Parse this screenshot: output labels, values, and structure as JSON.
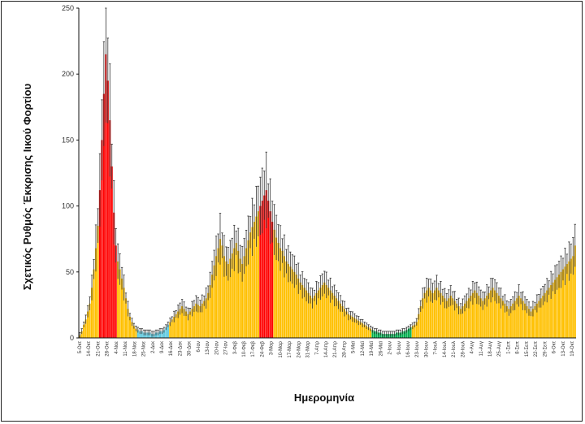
{
  "chart_data": {
    "type": "bar",
    "title": "",
    "xlabel": "Ημερομηνία",
    "ylabel": "Σχετικός Ρυθμός Έκκρισης Ιικού Φορτίου",
    "ylim": [
      0,
      250
    ],
    "y_ticks": [
      0,
      50,
      100,
      150,
      200,
      250
    ],
    "grid": false,
    "legend": "none",
    "colors": {
      "yellow": "#FFC000",
      "red": "#FF0000",
      "green": "#00B050",
      "blue": "#5BC8DE",
      "error_bar": "#333333",
      "axis": "#111111"
    },
    "x_tick_labels": [
      "5-Οκτ",
      "14-Οκτ",
      "21-Οκτ",
      "28-Οκτ",
      "4-Νοε",
      "11-Νοε",
      "18-Νοε",
      "25-Νοε",
      "2-Δεκ",
      "9-Δεκ",
      "16-Δεκ",
      "23-Δεκ",
      "30-Δεκ",
      "6-Ιαν",
      "13-Ιαν",
      "20-Ιαν",
      "27-Ιαν",
      "3-Φεβ",
      "10-Φεβ",
      "17-Φεβ",
      "24-Φεβ",
      "3-Μαρ",
      "10-Μαρ",
      "17-Μαρ",
      "24-Μαρ",
      "31-Μαρ",
      "7-Απρ",
      "14-Απρ",
      "21-Απρ",
      "28-Απρ",
      "5-Μαϊ",
      "12-Μαϊ",
      "19-Μαϊ",
      "26-Μαϊ",
      "2-Ιουν",
      "9-Ιουν",
      "16-Ιουν",
      "23-Ιουν",
      "30-Ιουν",
      "7-Ιουλ",
      "14-Ιουλ",
      "21-Ιουλ",
      "28-Ιουλ",
      "4-Αυγ",
      "11-Αυγ",
      "18-Αυγ",
      "25-Αυγ",
      "1-Σεπ",
      "8-Σεπ",
      "15-Σεπ",
      "22-Σεπ",
      "29-Σεπ",
      "6-Οκτ",
      "13-Οκτ",
      "19-Οκτ"
    ],
    "series": [
      {
        "values": [
          2,
          5,
          10,
          14,
          20,
          26,
          38,
          52,
          68,
          85,
          112,
          150,
          185,
          215,
          195,
          165,
          130,
          95,
          70,
          58,
          52,
          45,
          38,
          30,
          22,
          16,
          12,
          9,
          7,
          6,
          5,
          5,
          4,
          4,
          4,
          4,
          3,
          3,
          4,
          4,
          5,
          5,
          6,
          8,
          10,
          12,
          14,
          16,
          18,
          20,
          22,
          24,
          22,
          20,
          18,
          20,
          22,
          24,
          26,
          25,
          24,
          26,
          28,
          30,
          34,
          40,
          48,
          55,
          62,
          68,
          75,
          70,
          62,
          58,
          56,
          60,
          64,
          68,
          72,
          66,
          60,
          56,
          62,
          68,
          74,
          80,
          84,
          88,
          92,
          96,
          100,
          104,
          108,
          112,
          104,
          96,
          88,
          82,
          76,
          72,
          68,
          66,
          62,
          58,
          56,
          54,
          52,
          50,
          48,
          45,
          42,
          40,
          38,
          36,
          34,
          32,
          30,
          32,
          34,
          36,
          38,
          40,
          42,
          40,
          38,
          36,
          34,
          32,
          30,
          28,
          26,
          24,
          22,
          20,
          18,
          17,
          16,
          15,
          14,
          13,
          12,
          11,
          10,
          9,
          8,
          7,
          6,
          5,
          5,
          4,
          4,
          3,
          3,
          3,
          3,
          3,
          3,
          3,
          4,
          4,
          4,
          5,
          5,
          6,
          7,
          8,
          9,
          10,
          12,
          18,
          24,
          30,
          34,
          36,
          38,
          36,
          34,
          36,
          38,
          36,
          34,
          32,
          30,
          28,
          30,
          32,
          30,
          28,
          26,
          24,
          22,
          24,
          26,
          28,
          30,
          32,
          34,
          36,
          34,
          32,
          30,
          28,
          30,
          32,
          34,
          36,
          38,
          36,
          34,
          32,
          30,
          28,
          26,
          24,
          22,
          24,
          26,
          28,
          30,
          32,
          30,
          28,
          26,
          24,
          22,
          20,
          22,
          24,
          26,
          28,
          30,
          32,
          34,
          36,
          38,
          40,
          42,
          44,
          46,
          48,
          50,
          52,
          54,
          56,
          58,
          60,
          62,
          70
        ]
      }
    ],
    "bar_color_bands": [
      {
        "from": 0,
        "to": 9,
        "color": "yellow"
      },
      {
        "from": 10,
        "to": 18,
        "color": "red"
      },
      {
        "from": 19,
        "to": 28,
        "color": "yellow"
      },
      {
        "from": 29,
        "to": 44,
        "color": "blue"
      },
      {
        "from": 45,
        "to": 89,
        "color": "yellow"
      },
      {
        "from": 90,
        "to": 96,
        "color": "red"
      },
      {
        "from": 97,
        "to": 145,
        "color": "yellow"
      },
      {
        "from": 146,
        "to": 165,
        "color": "green"
      },
      {
        "from": 166,
        "to": 254,
        "color": "yellow"
      },
      {
        "from": 255,
        "to": 255,
        "color": "red"
      }
    ]
  }
}
